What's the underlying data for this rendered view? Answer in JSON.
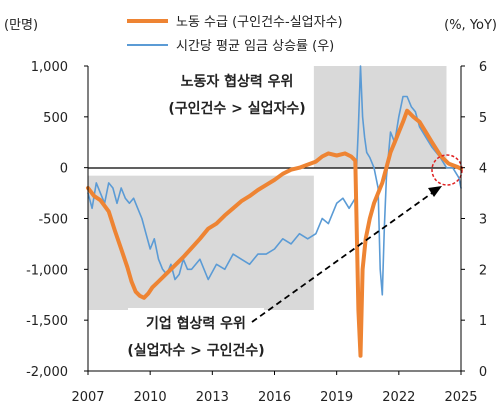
{
  "chart_data": {
    "type": "line",
    "left_unit": "(만명)",
    "right_unit": "(%, YoY)",
    "y_left_ticks": [
      "1,000",
      "500",
      "0",
      "-500",
      "-1,000",
      "-1,500",
      "-2,000"
    ],
    "y_right_ticks": [
      "6",
      "5",
      "4",
      "3",
      "2",
      "1",
      "0"
    ],
    "x_ticks": [
      "2007",
      "2010",
      "2013",
      "2016",
      "2019",
      "2022",
      "2025"
    ],
    "ylim_left": [
      -2000,
      1000
    ],
    "ylim_right": [
      0,
      6
    ],
    "xlim": [
      2007,
      2025
    ],
    "grid": false,
    "legend_position": "top-center",
    "colors": {
      "supply_demand": "#ee8433",
      "wage": "#5b9bd5",
      "shade": "#d9d9d9",
      "dashed_circle": "#e02020"
    },
    "shaded_regions": [
      {
        "x0": 2007,
        "x1": 2017.9,
        "side": "bottom",
        "label_line1": "기업 협상력 우위",
        "label_line2": "(실업자수 > 구인건수)"
      },
      {
        "x0": 2017.9,
        "x1": 2024.3,
        "side": "top",
        "label_line1": "노동자 협상력 우위",
        "label_line2": "(구인건수 > 실업자수)"
      }
    ],
    "series": [
      {
        "name": "노동 수급 (구인건수-실업자수)",
        "axis": "left",
        "x": [
          2007.0,
          2007.3,
          2007.6,
          2008.0,
          2008.3,
          2008.6,
          2008.9,
          2009.1,
          2009.3,
          2009.5,
          2009.7,
          2009.9,
          2010.1,
          2010.4,
          2010.8,
          2011.2,
          2011.6,
          2012.0,
          2012.4,
          2012.8,
          2013.2,
          2013.6,
          2014.0,
          2014.4,
          2014.8,
          2015.2,
          2015.6,
          2016.0,
          2016.4,
          2016.8,
          2017.2,
          2017.6,
          2018.0,
          2018.3,
          2018.6,
          2019.0,
          2019.4,
          2019.7,
          2019.9,
          2020.05,
          2020.15,
          2020.25,
          2020.4,
          2020.6,
          2020.8,
          2021.0,
          2021.2,
          2021.4,
          2021.6,
          2021.8,
          2022.0,
          2022.2,
          2022.4,
          2022.7,
          2023.0,
          2023.3,
          2023.6,
          2024.0,
          2024.4,
          2024.8,
          2025.0
        ],
        "values": [
          -200,
          -280,
          -320,
          -430,
          -620,
          -800,
          -980,
          -1120,
          -1220,
          -1260,
          -1280,
          -1240,
          -1180,
          -1120,
          -1040,
          -960,
          -880,
          -790,
          -700,
          -600,
          -550,
          -470,
          -400,
          -330,
          -280,
          -220,
          -170,
          -120,
          -60,
          -20,
          0,
          30,
          60,
          110,
          140,
          120,
          140,
          110,
          70,
          -1400,
          -1850,
          -1000,
          -700,
          -500,
          -350,
          -250,
          -150,
          0,
          150,
          250,
          350,
          450,
          560,
          500,
          450,
          350,
          250,
          120,
          40,
          10,
          -10
        ]
      },
      {
        "name": "시간당 평균 임금 상승률 (우)",
        "axis": "right",
        "x": [
          2007.0,
          2007.2,
          2007.4,
          2007.6,
          2007.8,
          2008.0,
          2008.2,
          2008.4,
          2008.6,
          2008.8,
          2009.0,
          2009.2,
          2009.4,
          2009.6,
          2009.8,
          2010.0,
          2010.2,
          2010.4,
          2010.6,
          2010.8,
          2011.0,
          2011.2,
          2011.4,
          2011.6,
          2011.8,
          2012.0,
          2012.4,
          2012.8,
          2013.2,
          2013.6,
          2014.0,
          2014.4,
          2014.8,
          2015.2,
          2015.6,
          2016.0,
          2016.4,
          2016.8,
          2017.2,
          2017.6,
          2018.0,
          2018.3,
          2018.6,
          2019.0,
          2019.3,
          2019.6,
          2019.9,
          2020.05,
          2020.15,
          2020.25,
          2020.35,
          2020.45,
          2020.6,
          2020.8,
          2021.0,
          2021.1,
          2021.2,
          2021.3,
          2021.4,
          2021.6,
          2021.8,
          2022.0,
          2022.2,
          2022.4,
          2022.6,
          2022.8,
          2023.0,
          2023.3,
          2023.6,
          2024.0,
          2024.3,
          2024.6,
          2024.9,
          2025.0
        ],
        "values": [
          3.5,
          3.2,
          3.7,
          3.5,
          3.3,
          3.7,
          3.6,
          3.3,
          3.6,
          3.4,
          3.3,
          3.4,
          3.2,
          3.0,
          2.7,
          2.4,
          2.6,
          2.2,
          2.0,
          1.9,
          2.1,
          1.8,
          1.9,
          2.2,
          2.0,
          2.0,
          2.2,
          1.8,
          2.1,
          2.0,
          2.3,
          2.2,
          2.1,
          2.3,
          2.3,
          2.4,
          2.6,
          2.5,
          2.7,
          2.6,
          2.7,
          3.0,
          2.9,
          3.3,
          3.4,
          3.2,
          3.4,
          4.8,
          6.0,
          5.0,
          4.6,
          4.3,
          4.2,
          4.0,
          3.6,
          2.0,
          1.5,
          2.8,
          3.8,
          4.7,
          4.5,
          5.0,
          5.4,
          5.4,
          5.2,
          5.1,
          4.8,
          4.6,
          4.4,
          4.2,
          4.0,
          4.0,
          3.8,
          3.6
        ]
      }
    ]
  }
}
